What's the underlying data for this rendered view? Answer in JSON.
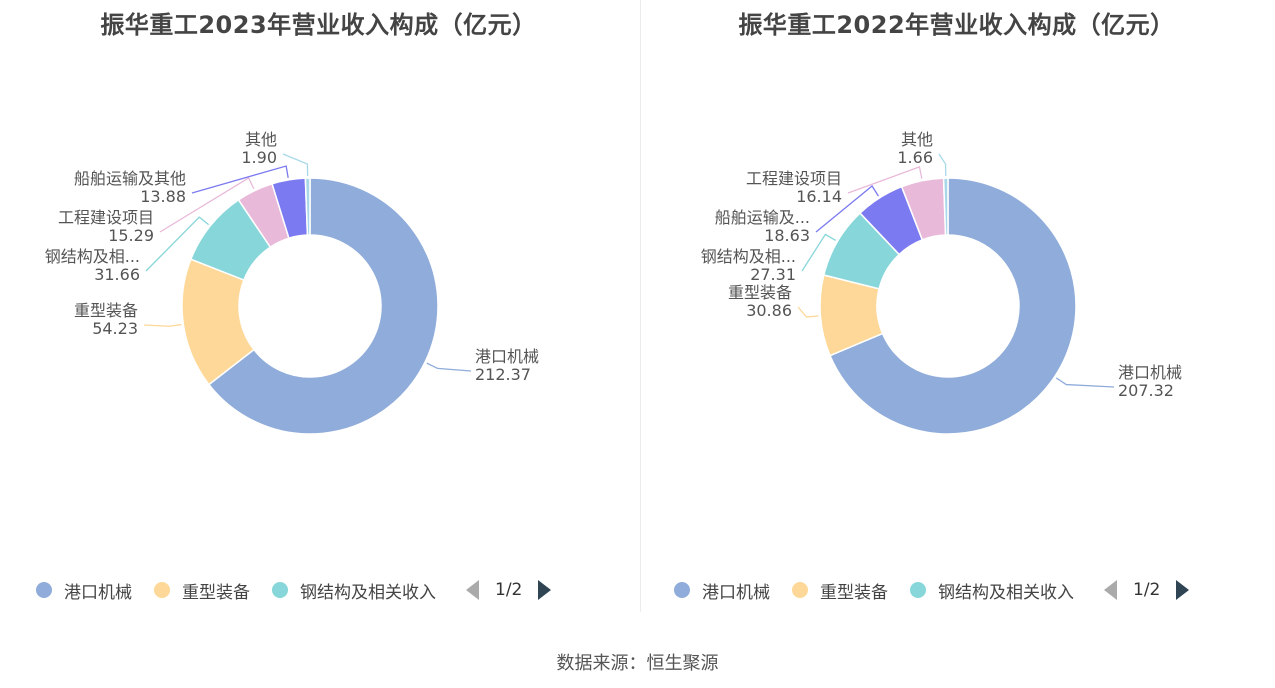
{
  "colors": {
    "港口机械": "#8facda",
    "重型装备": "#fdd898",
    "钢结构及相关收入": "#87d6d9",
    "工程建设项目": "#e9b9d9",
    "船舶运输及其他": "#7b7af0",
    "其他": "#a8d8e8"
  },
  "chart_data": [
    {
      "type": "pie",
      "title": "振华重工2023年营业收入构成（亿元）",
      "slices": [
        {
          "name": "港口机械",
          "label": "港口机械",
          "value": 212.37
        },
        {
          "name": "重型装备",
          "label": "重型装备",
          "value": 54.23
        },
        {
          "name": "钢结构及相关收入",
          "label": "钢结构及相...",
          "value": 31.66
        },
        {
          "name": "工程建设项目",
          "label": "工程建设项目",
          "value": 15.29
        },
        {
          "name": "船舶运输及其他",
          "label": "船舶运输及其他",
          "value": 13.88
        },
        {
          "name": "其他",
          "label": "其他",
          "value": 1.9
        }
      ],
      "legend": {
        "items": [
          "港口机械",
          "重型装备",
          "钢结构及相关收入"
        ],
        "page": "1/2",
        "placement": "bottom"
      }
    },
    {
      "type": "pie",
      "title": "振华重工2022年营业收入构成（亿元）",
      "slices": [
        {
          "name": "港口机械",
          "label": "港口机械",
          "value": 207.32
        },
        {
          "name": "重型装备",
          "label": "重型装备",
          "value": 30.86
        },
        {
          "name": "钢结构及相关收入",
          "label": "钢结构及相...",
          "value": 27.31
        },
        {
          "name": "船舶运输及其他",
          "label": "船舶运输及...",
          "value": 18.63
        },
        {
          "name": "工程建设项目",
          "label": "工程建设项目",
          "value": 16.14
        },
        {
          "name": "其他",
          "label": "其他",
          "value": 1.66
        }
      ],
      "legend": {
        "items": [
          "港口机械",
          "重型装备",
          "钢结构及相关收入"
        ],
        "page": "1/2",
        "placement": "bottom"
      }
    }
  ],
  "source": "数据来源：恒生聚源"
}
